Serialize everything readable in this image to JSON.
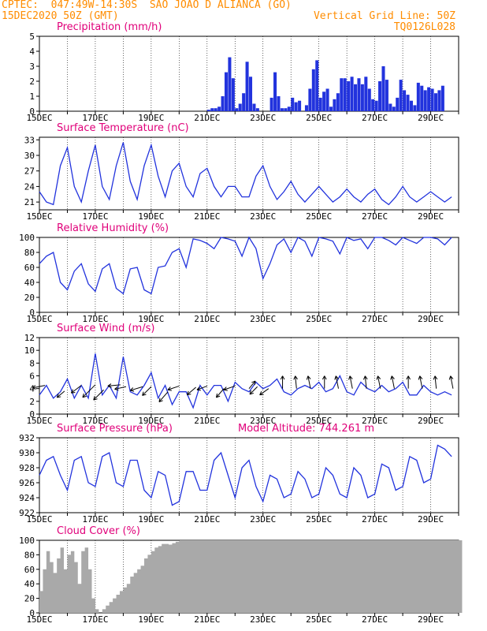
{
  "header": {
    "line1_left": "CPTEC:  047:49W-14:30S  SAO JOAO D ALIANCA (GO)",
    "line2_left": "15DEC2020 50Z (GMT)",
    "line2_right": "Vertical Grid Line: 50Z",
    "line3_right": "TQ0126L028"
  },
  "colors": {
    "header": "#ff8c00",
    "title": "#e0007a",
    "series": "#2233dd",
    "cloud": "#a9a9a9"
  },
  "x_labels": [
    "15DEC",
    "17DEC",
    "19DEC",
    "21DEC",
    "23DEC",
    "25DEC",
    "27DEC",
    "29DEC"
  ],
  "chart_data": [
    {
      "type": "bar",
      "title": "Precipitation (mm/h)",
      "ylim": [
        0,
        5
      ],
      "yticks": [
        "0",
        "1",
        "2",
        "3",
        "4",
        "5"
      ],
      "x_start_day": 0,
      "x_end_day": 15,
      "samples_per_day": 8,
      "values": [
        0,
        0,
        0,
        0,
        0,
        0,
        0,
        0,
        0,
        0,
        0,
        0,
        0,
        0,
        0,
        0,
        0,
        0,
        0,
        0,
        0,
        0,
        0,
        0,
        0,
        0,
        0,
        0,
        0,
        0,
        0,
        0,
        0,
        0,
        0,
        0,
        0,
        0,
        0,
        0,
        0,
        0,
        0,
        0,
        0,
        0,
        0,
        0,
        0.1,
        0.2,
        0.2,
        0.3,
        1.0,
        2.6,
        3.6,
        2.2,
        0.2,
        0.5,
        1.2,
        3.3,
        2.3,
        0.5,
        0.2,
        0,
        0,
        0,
        0.9,
        2.6,
        1.0,
        0.2,
        0.2,
        0.3,
        0.9,
        0.6,
        0.7,
        0,
        0.4,
        1.5,
        2.8,
        3.4,
        0.9,
        1.3,
        1.5,
        0.3,
        0.8,
        1.2,
        2.2,
        2.2,
        2.0,
        2.3,
        1.8,
        2.2,
        1.8,
        2.3,
        1.5,
        0.8,
        0.7,
        2.0,
        3.0,
        2.1,
        0.5,
        0.3,
        0.9,
        2.1,
        1.4,
        1.1,
        0.7,
        0.4,
        1.9,
        1.7,
        1.4,
        1.6,
        1.5,
        1.2,
        1.4,
        1.7
      ]
    },
    {
      "type": "line",
      "title": "Surface Temperature (nC)",
      "ylim": [
        19.5,
        33.5
      ],
      "yticks": [
        "21",
        "24",
        "27",
        "30",
        "33"
      ],
      "x_start_day": 0,
      "x_end_day": 15,
      "samples_per_day": 4,
      "values": [
        23,
        21,
        20.5,
        28,
        31.5,
        24,
        21,
        27,
        32,
        24,
        21.5,
        28,
        32.5,
        25,
        21.5,
        28,
        32,
        26,
        22,
        27,
        28.5,
        24,
        22,
        26.5,
        27.5,
        24,
        22,
        24,
        24,
        22,
        22,
        26,
        28,
        24,
        21.5,
        23,
        25,
        22.5,
        21,
        22.5,
        24,
        22.5,
        21,
        22,
        23.5,
        22,
        21,
        22.5,
        23.5,
        21.5,
        20.5,
        22,
        24,
        22,
        21,
        22,
        23,
        22,
        21,
        22
      ]
    },
    {
      "type": "line",
      "title": "Relative Humidity (%)",
      "ylim": [
        0,
        100
      ],
      "yticks": [
        "0",
        "20",
        "40",
        "60",
        "80",
        "100"
      ],
      "x_start_day": 0,
      "x_end_day": 15,
      "samples_per_day": 4,
      "values": [
        65,
        75,
        80,
        40,
        30,
        55,
        65,
        38,
        28,
        58,
        65,
        32,
        25,
        58,
        60,
        30,
        25,
        60,
        62,
        80,
        85,
        60,
        98,
        96,
        92,
        85,
        100,
        98,
        95,
        75,
        100,
        85,
        45,
        65,
        90,
        98,
        80,
        100,
        95,
        75,
        100,
        98,
        95,
        78,
        100,
        96,
        98,
        85,
        100,
        100,
        96,
        90,
        100,
        96,
        92,
        100,
        100,
        98,
        90,
        100
      ]
    },
    {
      "type": "line",
      "title": "Surface Wind (m/s)",
      "ylim": [
        0,
        12
      ],
      "yticks": [
        "0",
        "2",
        "4",
        "6",
        "8",
        "10",
        "12"
      ],
      "x_start_day": 0,
      "x_end_day": 15,
      "samples_per_day": 4,
      "values": [
        3,
        4.5,
        2.5,
        3.5,
        5.5,
        2.5,
        4.5,
        2.5,
        9.5,
        3,
        4.5,
        2.5,
        9,
        3.5,
        3,
        4.5,
        6.5,
        2.5,
        4.5,
        1.5,
        3.5,
        3.5,
        1,
        4.5,
        3,
        4.5,
        4.5,
        2,
        5,
        4,
        3.5,
        5,
        4,
        4.5,
        5.5,
        3.5,
        3,
        4,
        4.5,
        4,
        5,
        3.5,
        4,
        6,
        3.5,
        3,
        5,
        4,
        3.5,
        4.5,
        3.5,
        4,
        5,
        3,
        3,
        4.5,
        3.5,
        3,
        3.5,
        3
      ],
      "arrows": [
        [
          0.2,
          4.5,
          -1,
          0.2
        ],
        [
          0.9,
          3.6,
          -0.6,
          0.5
        ],
        [
          1.5,
          4.5,
          -0.8,
          0.6
        ],
        [
          2.0,
          4.6,
          -1,
          1
        ],
        [
          2.3,
          3.8,
          -0.8,
          0.8
        ],
        [
          2.9,
          4.6,
          -1,
          0.1
        ],
        [
          3.1,
          4.3,
          -0.9,
          0.2
        ],
        [
          3.7,
          4.3,
          -1,
          0.3
        ],
        [
          4.0,
          4.3,
          -0.7,
          0.7
        ],
        [
          4.6,
          3.5,
          -0.7,
          0.8
        ],
        [
          5.0,
          4.4,
          -0.9,
          0.3
        ],
        [
          5.6,
          4.2,
          -0.7,
          0.6
        ],
        [
          6.0,
          4.4,
          -0.8,
          0.3
        ],
        [
          6.6,
          4.0,
          -0.6,
          0.7
        ],
        [
          7.0,
          4.4,
          -0.9,
          0.3
        ],
        [
          7.5,
          4.0,
          0.5,
          -0.6
        ],
        [
          7.8,
          4.3,
          -0.6,
          0.6
        ],
        [
          8.2,
          4.0,
          -0.7,
          0.5
        ],
        [
          8.7,
          4.0,
          0,
          -1
        ],
        [
          9.2,
          4.0,
          -0.1,
          -1
        ],
        [
          9.7,
          4.0,
          -0.2,
          -1
        ],
        [
          10.2,
          4.0,
          0,
          -1
        ],
        [
          10.7,
          4.0,
          -0.2,
          -1
        ],
        [
          11.2,
          4.0,
          -0.2,
          -1
        ],
        [
          11.7,
          4.0,
          -0.1,
          -1
        ],
        [
          12.2,
          4.0,
          -0.2,
          -1
        ],
        [
          12.7,
          4.0,
          -0.2,
          -1
        ],
        [
          13.2,
          4.0,
          0,
          -1
        ],
        [
          13.7,
          4.0,
          -0.2,
          -1
        ],
        [
          14.2,
          4.0,
          -0.1,
          -1
        ],
        [
          14.8,
          4.0,
          -0.2,
          -1
        ]
      ]
    },
    {
      "type": "line",
      "title": "Surface Pressure (hPa)",
      "subtitle": "Model Altitude: 744.261 m",
      "ylim": [
        922,
        932
      ],
      "yticks": [
        "922",
        "924",
        "926",
        "928",
        "930",
        "932"
      ],
      "x_start_day": 0,
      "x_end_day": 15,
      "samples_per_day": 4,
      "values": [
        927,
        929,
        929.5,
        927,
        925,
        929,
        929.5,
        926,
        925.5,
        929.5,
        930,
        926,
        925.5,
        929,
        929,
        925,
        924,
        927.5,
        927,
        923,
        923.5,
        927.5,
        927.5,
        925,
        925,
        929,
        930,
        927,
        924,
        928,
        929,
        925.5,
        923.5,
        927,
        926.5,
        924,
        924.5,
        927.5,
        926.5,
        924,
        924.5,
        928,
        927,
        924.5,
        924,
        928,
        927,
        924,
        924.5,
        928.5,
        928,
        925,
        925.5,
        929.5,
        929,
        926,
        926.5,
        931,
        930.5,
        929.5
      ]
    },
    {
      "type": "area",
      "title": "Cloud Cover (%)",
      "ylim": [
        0,
        100
      ],
      "yticks": [
        "0",
        "20",
        "40",
        "60",
        "80",
        "100"
      ],
      "x_start_day": 0,
      "x_end_day": 15,
      "samples_per_day": 8,
      "values": [
        30,
        60,
        85,
        70,
        55,
        75,
        90,
        60,
        80,
        85,
        70,
        40,
        85,
        90,
        60,
        20,
        5,
        0,
        5,
        10,
        15,
        20,
        25,
        30,
        35,
        40,
        50,
        55,
        60,
        65,
        75,
        80,
        85,
        90,
        92,
        95,
        95,
        94,
        96,
        98,
        100,
        100,
        100,
        100,
        100,
        100,
        100,
        100,
        100,
        100,
        100,
        100,
        100,
        100,
        100,
        100,
        100,
        100,
        100,
        100,
        100,
        100,
        100,
        100,
        100,
        100,
        100,
        100,
        100,
        100,
        100,
        100,
        100,
        100,
        100,
        100,
        100,
        100,
        100,
        100,
        100,
        100,
        100,
        100,
        100,
        100,
        100,
        100,
        100,
        100,
        100,
        100,
        100,
        100,
        100,
        100,
        100,
        100,
        100,
        100,
        100,
        100,
        100,
        100,
        100,
        100,
        100,
        100,
        100,
        100,
        100,
        100,
        100,
        100,
        100,
        100,
        100,
        100,
        100,
        100,
        100
      ]
    }
  ]
}
